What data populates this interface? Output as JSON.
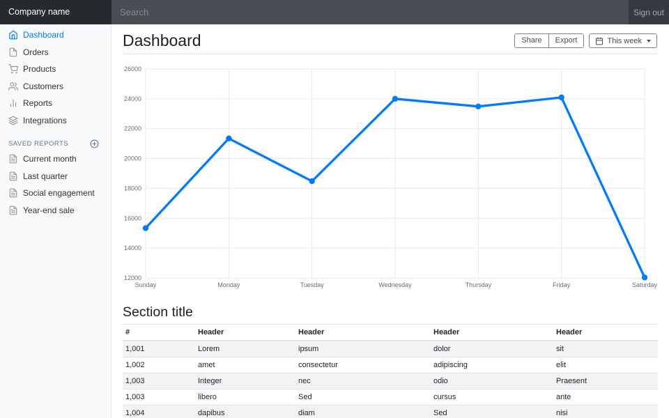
{
  "navbar": {
    "brand": "Company name",
    "search_placeholder": "Search",
    "sign_out_label": "Sign out"
  },
  "sidebar": {
    "items": [
      {
        "label": "Dashboard",
        "icon": "home",
        "active": true
      },
      {
        "label": "Orders",
        "icon": "file",
        "active": false
      },
      {
        "label": "Products",
        "icon": "shopping-cart",
        "active": false
      },
      {
        "label": "Customers",
        "icon": "users",
        "active": false
      },
      {
        "label": "Reports",
        "icon": "bar-chart",
        "active": false
      },
      {
        "label": "Integrations",
        "icon": "layers",
        "active": false
      }
    ],
    "saved_reports_heading": "SAVED REPORTS",
    "saved_items": [
      {
        "label": "Current month",
        "icon": "file-text"
      },
      {
        "label": "Last quarter",
        "icon": "file-text"
      },
      {
        "label": "Social engagement",
        "icon": "file-text"
      },
      {
        "label": "Year-end sale",
        "icon": "file-text"
      }
    ]
  },
  "header": {
    "title": "Dashboard",
    "share_label": "Share",
    "export_label": "Export",
    "week_label": "This week"
  },
  "chart_data": {
    "type": "line",
    "title": "",
    "x": [
      "Sunday",
      "Monday",
      "Tuesday",
      "Wednesday",
      "Thursday",
      "Friday",
      "Saturday"
    ],
    "values": [
      15339,
      21345,
      18483,
      24003,
      23489,
      24092,
      12034
    ],
    "ylim": [
      12000,
      26000
    ],
    "ytick_step": 2000,
    "grid": true,
    "legend": false,
    "line_color": "#007bff",
    "point_color": "#007bff",
    "grid_color": "#e9eaeb",
    "tick_color": "#6a6e72"
  },
  "section": {
    "title": "Section title"
  },
  "table": {
    "headers": [
      "#",
      "Header",
      "Header",
      "Header",
      "Header"
    ],
    "rows": [
      [
        "1,001",
        "Lorem",
        "ipsum",
        "dolor",
        "sit"
      ],
      [
        "1,002",
        "amet",
        "consectetur",
        "adipiscing",
        "elit"
      ],
      [
        "1,003",
        "Integer",
        "nec",
        "odio",
        "Praesent"
      ],
      [
        "1,003",
        "libero",
        "Sed",
        "cursus",
        "ante"
      ],
      [
        "1,004",
        "dapibus",
        "diam",
        "Sed",
        "nisi"
      ]
    ]
  },
  "colors": {
    "accent": "#007bff",
    "navbar_bg": "#343a40",
    "brand_bg": "#262a2e",
    "sidebar_bg": "#f8f9fa"
  }
}
